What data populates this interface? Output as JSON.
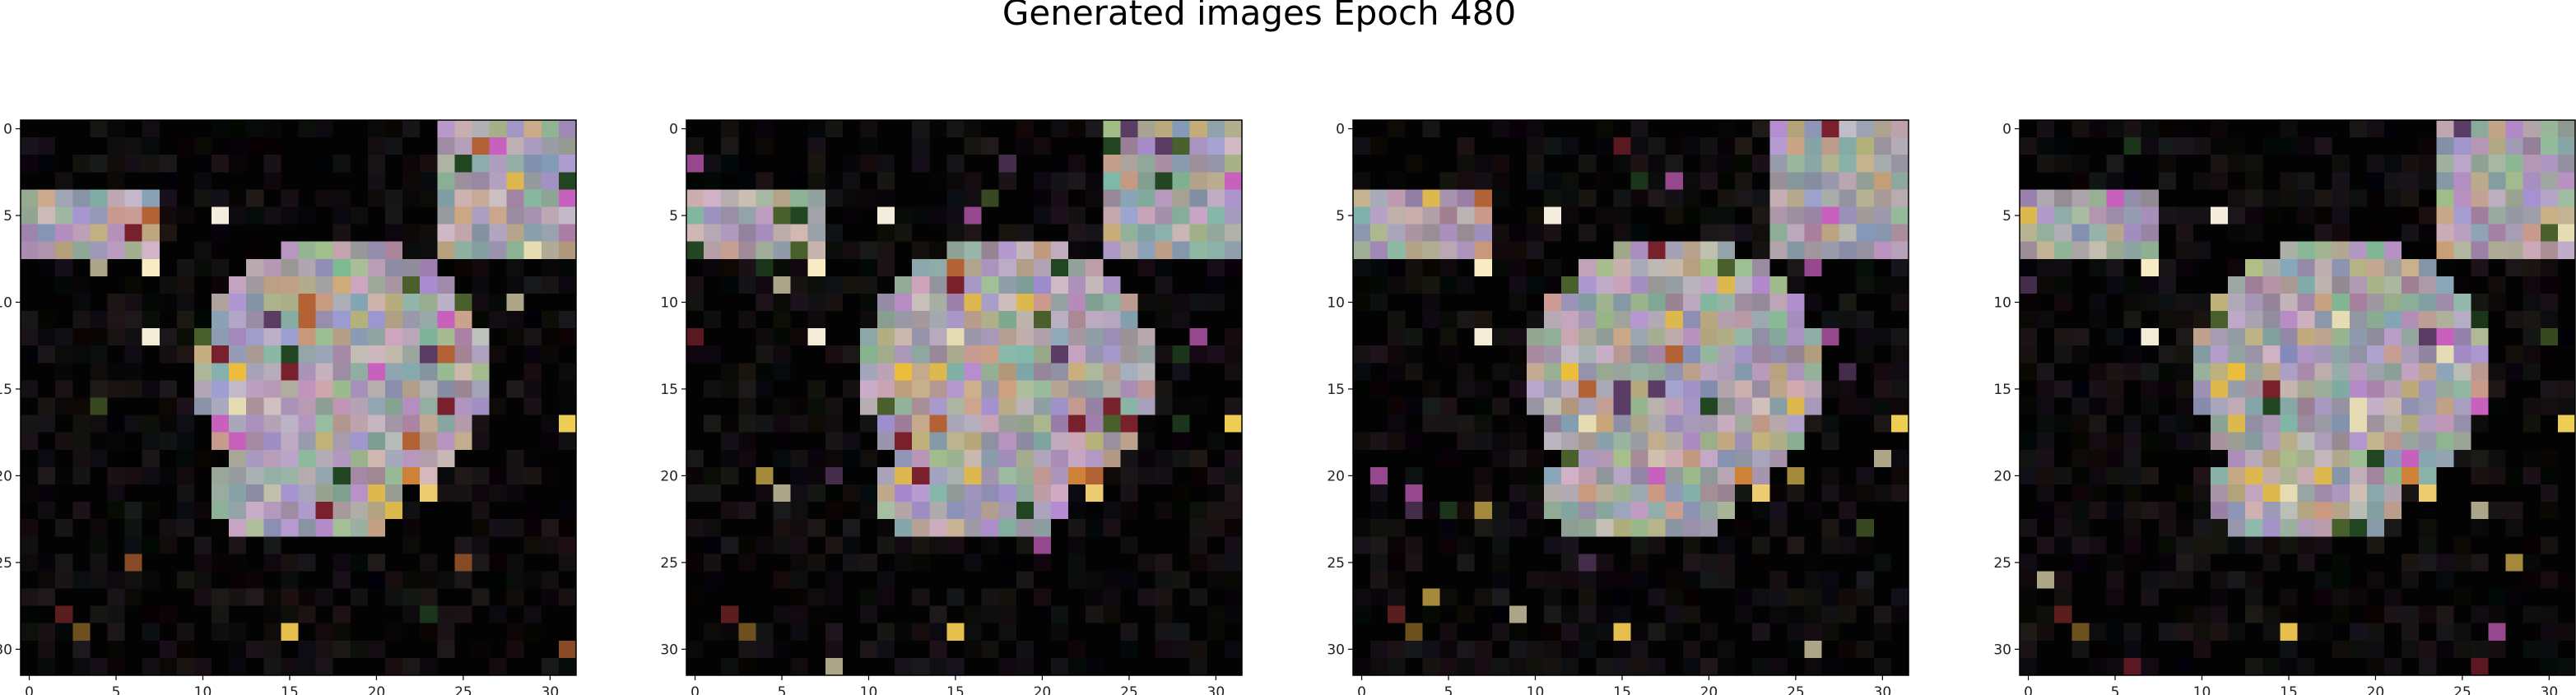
{
  "figure": {
    "title": "Generated images Epoch 480"
  },
  "chart_data": [
    {
      "type": "heatmap",
      "panel": "image-1",
      "xticks": [
        "0",
        "5",
        "10",
        "15",
        "20",
        "25",
        "30"
      ],
      "yticks": [
        "0",
        "5",
        "10",
        "15",
        "20",
        "25",
        "30"
      ],
      "xlim": [
        -0.5,
        31.5
      ],
      "ylim": [
        31.5,
        -0.5
      ],
      "grid": false,
      "image_seed": 11
    },
    {
      "type": "heatmap",
      "panel": "image-2",
      "xticks": [
        "0",
        "5",
        "10",
        "15",
        "20",
        "25",
        "30"
      ],
      "yticks": [
        "0",
        "5",
        "10",
        "15",
        "20",
        "25",
        "30"
      ],
      "xlim": [
        -0.5,
        31.5
      ],
      "ylim": [
        31.5,
        -0.5
      ],
      "grid": false,
      "image_seed": 23
    },
    {
      "type": "heatmap",
      "panel": "image-3",
      "xticks": [
        "0",
        "5",
        "10",
        "15",
        "20",
        "25",
        "30"
      ],
      "yticks": [
        "0",
        "5",
        "10",
        "15",
        "20",
        "25",
        "30"
      ],
      "xlim": [
        -0.5,
        31.5
      ],
      "ylim": [
        31.5,
        -0.5
      ],
      "grid": false,
      "image_seed": 37
    },
    {
      "type": "heatmap",
      "panel": "image-4",
      "xticks": [
        "0",
        "5",
        "10",
        "15",
        "20",
        "25",
        "30"
      ],
      "yticks": [
        "0",
        "5",
        "10",
        "15",
        "20",
        "25",
        "30"
      ],
      "xlim": [
        -0.5,
        31.5
      ],
      "ylim": [
        31.5,
        -0.5
      ],
      "grid": false,
      "image_seed": 51
    }
  ]
}
